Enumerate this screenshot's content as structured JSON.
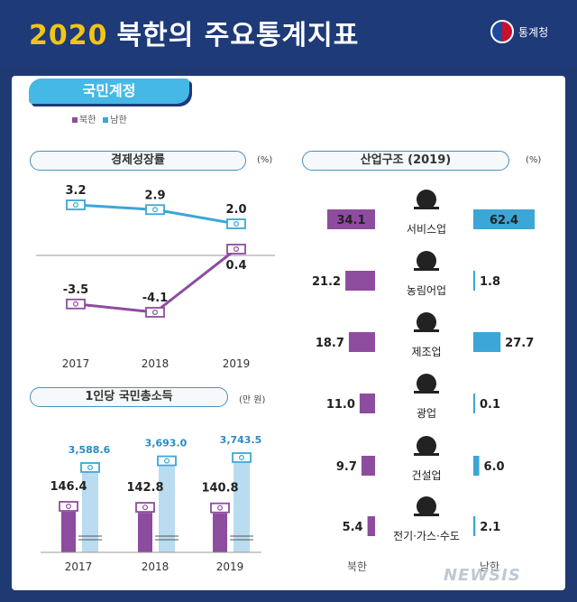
{
  "header": {
    "year": "2020",
    "title": "북한의 주요통계지표",
    "logo_text": "통계청"
  },
  "section_title": "국민계정",
  "legend": {
    "north": "북한",
    "south": "남한"
  },
  "colors": {
    "north": "#8e4c9f",
    "south": "#3ca6d6",
    "south_light": "#b9dcf0"
  },
  "chart_data": [
    {
      "type": "line",
      "title": "경제성장률",
      "unit": "(%)",
      "categories": [
        "2017",
        "2018",
        "2019"
      ],
      "series": [
        {
          "name": "남한",
          "values": [
            3.2,
            2.9,
            2.0
          ],
          "labels": [
            "3.2",
            "2.9",
            "2.0"
          ]
        },
        {
          "name": "북한",
          "values": [
            -3.5,
            -4.1,
            0.4
          ],
          "labels": [
            "-3.5",
            "-4.1",
            "0.4"
          ]
        }
      ]
    },
    {
      "type": "bar",
      "title": "1인당 국민총소득",
      "unit": "(만 원)",
      "categories": [
        "2017",
        "2018",
        "2019"
      ],
      "series": [
        {
          "name": "북한",
          "values": [
            146.4,
            142.8,
            140.8
          ],
          "labels": [
            "146.4",
            "142.8",
            "140.8"
          ]
        },
        {
          "name": "남한",
          "values": [
            3588.6,
            3693.0,
            3743.5
          ],
          "labels": [
            "3,588.6",
            "3,693.0",
            "3,743.5"
          ]
        }
      ]
    },
    {
      "type": "bar",
      "title": "산업구조 (2019)",
      "unit": "(%)",
      "categories": [
        "서비스업",
        "농림어업",
        "제조업",
        "광업",
        "건설업",
        "전기·가스·수도"
      ],
      "series": [
        {
          "name": "북한",
          "values": [
            34.1,
            21.2,
            18.7,
            11.0,
            9.7,
            5.4
          ],
          "labels": [
            "34.1",
            "21.2",
            "18.7",
            "11.0",
            "9.7",
            "5.4"
          ]
        },
        {
          "name": "남한",
          "values": [
            62.4,
            1.8,
            27.7,
            0.1,
            6.0,
            2.1
          ],
          "labels": [
            "62.4",
            "1.8",
            "27.7",
            "0.1",
            "6.0",
            "2.1"
          ]
        }
      ],
      "axis_labels": [
        "북한",
        "남한"
      ],
      "icons": [
        "cloche-icon",
        "seedling-icon",
        "wrench-icon",
        "pickaxe-icon",
        "crane-icon",
        "plug-icon"
      ]
    }
  ],
  "watermark": "NEWSIS"
}
